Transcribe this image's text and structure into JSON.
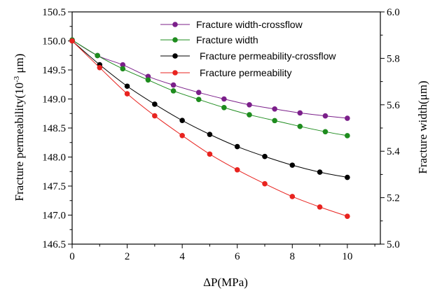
{
  "chart_data": {
    "type": "line",
    "xlabel": "ΔP(MPa)",
    "ylabel_left_main": "Fracture permeability(10",
    "ylabel_left_sup": "-3",
    "ylabel_left_unit": " μm)",
    "ylabel_right": "Fracture width(μm)",
    "xlim": [
      0,
      11.2
    ],
    "ylim_left": [
      146.5,
      150.5
    ],
    "ylim_right": [
      5.0,
      6.0
    ],
    "x_ticks": [
      "0",
      "2",
      "4",
      "6",
      "8",
      "10"
    ],
    "y_left_ticks": [
      "146.5",
      "147.0",
      "147.5",
      "148.0",
      "148.5",
      "149.0",
      "149.5",
      "150.0",
      "150.5"
    ],
    "y_right_ticks": [
      "5.0",
      "5.2",
      "5.4",
      "5.6",
      "5.8",
      "6.0"
    ],
    "legend_position": "top-right",
    "series": [
      {
        "name": "Fracture width-crossflow",
        "axis": "right",
        "color": "#7b1f8a",
        "x": [
          0,
          0.92,
          1.84,
          2.76,
          3.68,
          4.6,
          5.52,
          6.44,
          7.36,
          8.28,
          9.2,
          10
        ],
        "y": [
          5.879,
          5.812,
          5.772,
          5.722,
          5.685,
          5.653,
          5.625,
          5.6,
          5.582,
          5.565,
          5.552,
          5.542
        ]
      },
      {
        "name": "Fracture width",
        "axis": "right",
        "color": "#1e8c1e",
        "x": [
          0,
          0.92,
          1.84,
          2.76,
          3.68,
          4.6,
          5.52,
          6.44,
          7.36,
          8.28,
          9.2,
          10
        ],
        "y": [
          5.879,
          5.812,
          5.755,
          5.707,
          5.66,
          5.623,
          5.588,
          5.557,
          5.532,
          5.507,
          5.484,
          5.467
        ]
      },
      {
        "name": "Fracture permeability-crossflow",
        "axis": "left",
        "color": "#000000",
        "x": [
          0,
          1,
          2,
          3,
          4,
          5,
          6,
          7,
          8,
          9,
          10
        ],
        "y": [
          150.0,
          149.59,
          149.22,
          148.91,
          148.63,
          148.39,
          148.18,
          148.01,
          147.86,
          147.74,
          147.65
        ]
      },
      {
        "name": "Fracture permeability",
        "axis": "left",
        "color": "#e8231f",
        "x": [
          0,
          1,
          2,
          3,
          4,
          5,
          6,
          7,
          8,
          9,
          10
        ],
        "y": [
          150.0,
          149.54,
          149.09,
          148.71,
          148.37,
          148.05,
          147.78,
          147.54,
          147.32,
          147.14,
          146.98
        ]
      }
    ]
  }
}
